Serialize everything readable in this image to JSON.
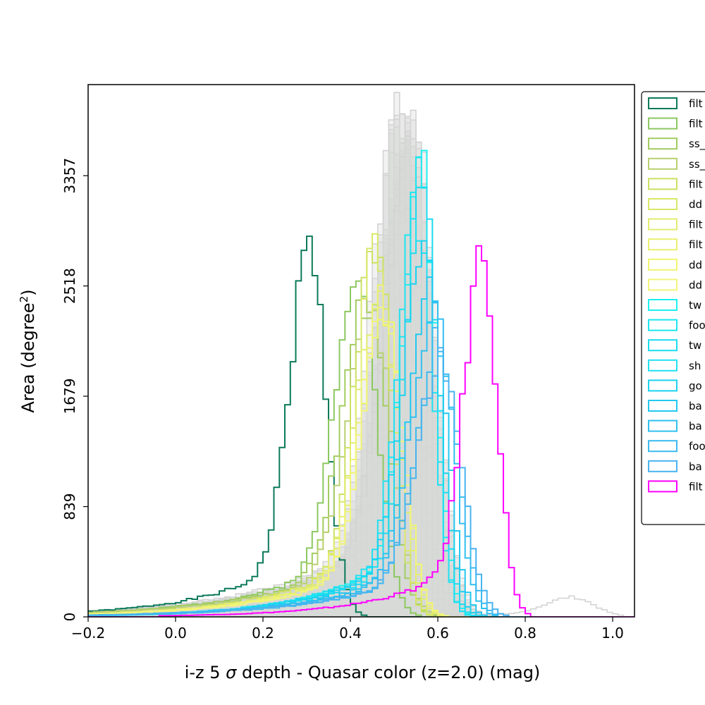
{
  "chart_data": {
    "type": "histogram",
    "xlabel": "i-z 5 $\\sigma$ depth - Quasar color (z=2.0) (mag)",
    "xlabel_parts": [
      "i-z 5 ",
      "σ",
      " depth - Quasar color (z=2.0) (mag)"
    ],
    "ylabel_parts": [
      "Area (degree",
      "2",
      ")"
    ],
    "xlim": [
      -0.2,
      1.05
    ],
    "ylim": [
      0,
      4050
    ],
    "x_ticks": [
      {
        "value": -0.2,
        "label": "−0.2"
      },
      {
        "value": 0.0,
        "label": "0.0"
      },
      {
        "value": 0.2,
        "label": "0.2"
      },
      {
        "value": 0.4,
        "label": "0.4"
      },
      {
        "value": 0.6,
        "label": "0.6"
      },
      {
        "value": 0.8,
        "label": "0.8"
      },
      {
        "value": 1.0,
        "label": "1.0"
      }
    ],
    "y_ticks": [
      {
        "value": 0,
        "label": "0"
      },
      {
        "value": 839,
        "label": "839"
      },
      {
        "value": 1679,
        "label": "1679"
      },
      {
        "value": 2518,
        "label": "2518"
      },
      {
        "value": 3357,
        "label": "3357"
      }
    ],
    "background_series": {
      "color": "#d3d3d3",
      "fill": "#d7dad7",
      "count": 30,
      "center_range": [
        0.49,
        0.55
      ],
      "peak_range": [
        3000,
        3900
      ],
      "width_range": [
        0.035,
        0.06
      ]
    },
    "series": [
      {
        "legend": "filt",
        "color": "#0b7a5a",
        "center": 0.3,
        "peak": 2820,
        "width": 0.045
      },
      {
        "legend": "filt",
        "color": "#8cc860",
        "center": 0.41,
        "peak": 2740,
        "width": 0.05
      },
      {
        "legend": "ss_",
        "color": "#a2cc60",
        "center": 0.43,
        "peak": 2450,
        "width": 0.055
      },
      {
        "legend": "ss_",
        "color": "#b8d070",
        "center": 0.44,
        "peak": 2380,
        "width": 0.055
      },
      {
        "legend": "filt",
        "color": "#cce063",
        "center": 0.45,
        "peak": 2860,
        "width": 0.045
      },
      {
        "legend": "dd",
        "color": "#d8e867",
        "center": 0.455,
        "peak": 2880,
        "width": 0.045
      },
      {
        "legend": "filt",
        "color": "#e2ec70",
        "center": 0.46,
        "peak": 2500,
        "width": 0.05
      },
      {
        "legend": "filt",
        "color": "#eaf070",
        "center": 0.465,
        "peak": 2400,
        "width": 0.05
      },
      {
        "legend": "dd",
        "color": "#f0f470",
        "center": 0.47,
        "peak": 2350,
        "width": 0.05
      },
      {
        "legend": "dd",
        "color": "#f2f47a",
        "center": 0.47,
        "peak": 2300,
        "width": 0.05
      },
      {
        "legend": "tw",
        "color": "#1ef0f0",
        "center": 0.555,
        "peak": 3430,
        "width": 0.04
      },
      {
        "legend": "foo",
        "color": "#1ae6f0",
        "center": 0.55,
        "peak": 3350,
        "width": 0.04
      },
      {
        "legend": "tw",
        "color": "#1adcf0",
        "center": 0.56,
        "peak": 3200,
        "width": 0.04
      },
      {
        "legend": "sh",
        "color": "#20e0f2",
        "center": 0.545,
        "peak": 3100,
        "width": 0.042
      },
      {
        "legend": "go",
        "color": "#1ad2f0",
        "center": 0.56,
        "peak": 2900,
        "width": 0.045
      },
      {
        "legend": "ba",
        "color": "#22c8f0",
        "center": 0.575,
        "peak": 2600,
        "width": 0.045
      },
      {
        "legend": "ba",
        "color": "#30c0f0",
        "center": 0.585,
        "peak": 2350,
        "width": 0.05
      },
      {
        "legend": "foo",
        "color": "#3cbaf0",
        "center": 0.595,
        "peak": 2100,
        "width": 0.05
      },
      {
        "legend": "ba",
        "color": "#48b4f0",
        "center": 0.6,
        "peak": 1950,
        "width": 0.055
      },
      {
        "legend": "filt",
        "color": "#ff00ff",
        "center": 0.695,
        "peak": 2780,
        "width": 0.04
      }
    ]
  }
}
